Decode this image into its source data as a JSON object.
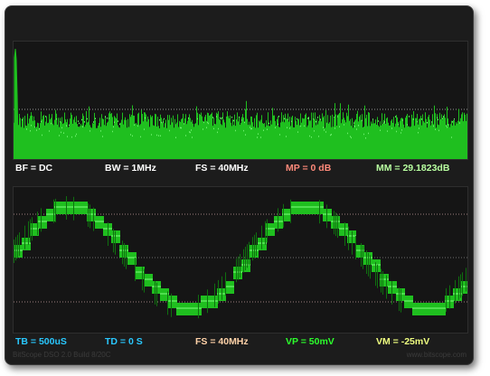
{
  "colors": {
    "background": "#1c1c1c",
    "trace": "#1fbf1f",
    "trace_bright": "#6cf06c",
    "label_white": "#ffffff",
    "label_salmon": "#ff8a7a",
    "label_lightgreen": "#b8ffa0",
    "label_cyan": "#29c8ff",
    "label_peach": "#ffd2a8",
    "label_green": "#2cff2c",
    "label_yellow": "#f0ff80"
  },
  "spectrum": {
    "status": {
      "bf": "BF = DC",
      "bw": "BW = 1MHz",
      "fs": "FS = 40MHz",
      "mp": "MP = 0 dB",
      "mm": "MM = 29.1823dB"
    }
  },
  "scope": {
    "status": {
      "tb": "TB = 500uS",
      "td": "TD = 0 S",
      "fs": "FS = 40MHz",
      "vp": "VP = 50mV",
      "vm": "VM = -25mV"
    },
    "waveform": {
      "shape": "stepped-sine",
      "cycles": 2
    }
  },
  "footer": {
    "build": "BitScope DSO 2.0 Build 8/20C",
    "url": "www.bitscope.com"
  }
}
